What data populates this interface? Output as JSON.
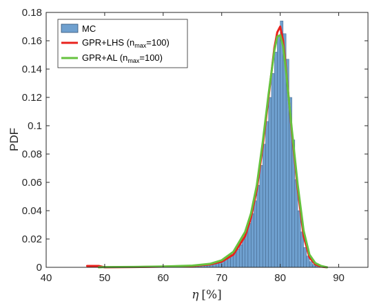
{
  "chart_data": {
    "type": "histogram",
    "xlabel_symbol": "η",
    "xlabel_unit": "[%]",
    "ylabel": "PDF",
    "xlim": [
      40,
      95
    ],
    "ylim": [
      0,
      0.18
    ],
    "x_ticks": [
      40,
      50,
      60,
      70,
      80,
      90
    ],
    "y_ticks": [
      0,
      0.02,
      0.04,
      0.06,
      0.08,
      0.1,
      0.12,
      0.14,
      0.16,
      0.18
    ],
    "y_tick_labels": [
      "0",
      "0.02",
      "0.04",
      "0.06",
      "0.08",
      "0.1",
      "0.12",
      "0.14",
      "0.16",
      "0.18"
    ],
    "grid": false,
    "legend_position": "top-left",
    "histogram": {
      "name": "MC",
      "bin_width": 0.5,
      "color": "#6fa0cf",
      "edge_color": "#2f4f73",
      "bins": [
        {
          "x": 63,
          "y": 0.001
        },
        {
          "x": 63.5,
          "y": 0.001
        },
        {
          "x": 64,
          "y": 0.001
        },
        {
          "x": 64.5,
          "y": 0.001
        },
        {
          "x": 65,
          "y": 0.001
        },
        {
          "x": 65.5,
          "y": 0.001
        },
        {
          "x": 66,
          "y": 0.001
        },
        {
          "x": 66.5,
          "y": 0.0015
        },
        {
          "x": 67,
          "y": 0.002
        },
        {
          "x": 67.5,
          "y": 0.002
        },
        {
          "x": 68,
          "y": 0.003
        },
        {
          "x": 68.5,
          "y": 0.003
        },
        {
          "x": 69,
          "y": 0.003
        },
        {
          "x": 69.5,
          "y": 0.004
        },
        {
          "x": 70,
          "y": 0.005
        },
        {
          "x": 70.5,
          "y": 0.006
        },
        {
          "x": 71,
          "y": 0.007
        },
        {
          "x": 71.5,
          "y": 0.009
        },
        {
          "x": 72,
          "y": 0.011
        },
        {
          "x": 72.5,
          "y": 0.013
        },
        {
          "x": 73,
          "y": 0.016
        },
        {
          "x": 73.5,
          "y": 0.02
        },
        {
          "x": 74,
          "y": 0.025
        },
        {
          "x": 74.5,
          "y": 0.031
        },
        {
          "x": 75,
          "y": 0.038
        },
        {
          "x": 75.5,
          "y": 0.047
        },
        {
          "x": 76,
          "y": 0.058
        },
        {
          "x": 76.5,
          "y": 0.072
        },
        {
          "x": 77,
          "y": 0.087
        },
        {
          "x": 77.5,
          "y": 0.103
        },
        {
          "x": 78,
          "y": 0.12
        },
        {
          "x": 78.5,
          "y": 0.137
        },
        {
          "x": 79,
          "y": 0.152
        },
        {
          "x": 79.5,
          "y": 0.163
        },
        {
          "x": 80,
          "y": 0.174
        },
        {
          "x": 80.5,
          "y": 0.165
        },
        {
          "x": 81,
          "y": 0.147
        },
        {
          "x": 81.5,
          "y": 0.12
        },
        {
          "x": 82,
          "y": 0.09
        },
        {
          "x": 82.5,
          "y": 0.062
        },
        {
          "x": 83,
          "y": 0.04
        },
        {
          "x": 83.5,
          "y": 0.025
        },
        {
          "x": 84,
          "y": 0.014
        },
        {
          "x": 84.5,
          "y": 0.008
        },
        {
          "x": 85,
          "y": 0.004
        },
        {
          "x": 85.5,
          "y": 0.002
        },
        {
          "x": 86,
          "y": 0.001
        }
      ]
    },
    "series": [
      {
        "name_main": "GPR+LHS (n",
        "name_sub": "max",
        "name_tail": "=100)",
        "color": "#e8211c",
        "x": [
          47,
          49,
          50,
          55,
          60,
          65,
          68,
          70,
          72,
          74,
          75,
          76,
          77,
          78,
          79,
          79.5,
          80,
          80.5,
          81,
          82,
          83,
          84,
          85,
          86,
          87,
          88
        ],
        "y": [
          0.001,
          0.001,
          0,
          0.0002,
          0.0005,
          0.001,
          0.002,
          0.004,
          0.009,
          0.022,
          0.035,
          0.055,
          0.085,
          0.12,
          0.155,
          0.166,
          0.17,
          0.16,
          0.14,
          0.095,
          0.055,
          0.022,
          0.007,
          0.002,
          0.0005,
          0
        ]
      },
      {
        "name_main": "GPR+AL (n",
        "name_sub": "max",
        "name_tail": "=100)",
        "color": "#66c23e",
        "x": [
          49,
          50,
          55,
          60,
          65,
          68,
          70,
          72,
          74,
          75,
          76,
          77,
          78,
          79,
          79.5,
          80,
          80.5,
          81,
          82,
          83,
          84,
          85,
          86,
          87,
          88
        ],
        "y": [
          0,
          0.0002,
          0.0003,
          0.0006,
          0.0012,
          0.0025,
          0.005,
          0.011,
          0.025,
          0.038,
          0.058,
          0.088,
          0.122,
          0.153,
          0.163,
          0.164,
          0.156,
          0.138,
          0.097,
          0.058,
          0.026,
          0.009,
          0.003,
          0.001,
          0
        ]
      }
    ]
  }
}
